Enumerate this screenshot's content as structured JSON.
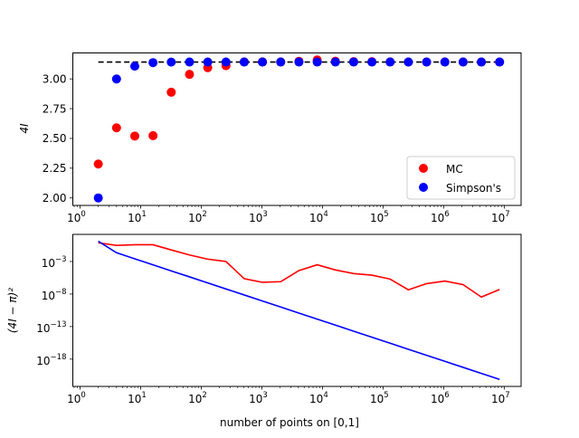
{
  "chart_data": [
    {
      "type": "scatter",
      "xscale": "log",
      "xlim": [
        0.76,
        19000000
      ],
      "ylim": [
        1.937,
        3.218
      ],
      "xlabel": "",
      "ylabel": "4I",
      "xticks": [
        {
          "value": 1,
          "base": "10",
          "exp": "0"
        },
        {
          "value": 10,
          "base": "10",
          "exp": "1"
        },
        {
          "value": 100,
          "base": "10",
          "exp": "2"
        },
        {
          "value": 1000,
          "base": "10",
          "exp": "3"
        },
        {
          "value": 10000,
          "base": "10",
          "exp": "4"
        },
        {
          "value": 100000,
          "base": "10",
          "exp": "5"
        },
        {
          "value": 1000000,
          "base": "10",
          "exp": "6"
        },
        {
          "value": 10000000,
          "base": "10",
          "exp": "7"
        }
      ],
      "yticks": [
        {
          "value": 2.0,
          "label": "2.00"
        },
        {
          "value": 2.25,
          "label": "2.25"
        },
        {
          "value": 2.5,
          "label": "2.50"
        },
        {
          "value": 2.75,
          "label": "2.75"
        },
        {
          "value": 3.0,
          "label": "3.00"
        }
      ],
      "x": [
        2,
        4,
        8,
        16,
        32,
        64,
        128,
        256,
        512,
        1024,
        2048,
        4096,
        8192,
        16384,
        32768,
        65536,
        131072,
        262144,
        524288,
        1048576,
        2097152,
        4194304,
        8388608
      ],
      "reference_line": {
        "name": "pi",
        "value": 3.14159,
        "style": "dashed",
        "color": "#000000",
        "x_range": [
          2,
          8388608
        ]
      },
      "series": [
        {
          "name": "MC",
          "color": "#ff0000",
          "values": [
            2.285,
            2.589,
            2.52,
            2.523,
            2.888,
            3.038,
            3.094,
            3.111,
            3.143,
            3.1426,
            3.1427,
            3.148,
            3.1594,
            3.1487,
            3.1453,
            3.1444,
            3.143,
            3.1418,
            3.1422,
            3.1426,
            3.1421,
            3.1417,
            3.1418
          ]
        },
        {
          "name": "Simpson's",
          "color": "#0000ff",
          "values": [
            2.0,
            2.999,
            3.107,
            3.1366,
            3.1412,
            3.1416,
            3.1416,
            3.1416,
            3.1416,
            3.1416,
            3.1416,
            3.1416,
            3.1416,
            3.1416,
            3.1416,
            3.1416,
            3.1416,
            3.1416,
            3.1416,
            3.1416,
            3.1416,
            3.1416,
            3.1416
          ]
        }
      ],
      "legend": {
        "position": "lower-right",
        "entries": [
          "MC",
          "Simpson's"
        ]
      }
    },
    {
      "type": "line",
      "xscale": "log",
      "yscale": "log",
      "xlim": [
        0.76,
        19000000
      ],
      "ylim_log10": [
        -22.2,
        1.17
      ],
      "xlabel": "number of points on [0,1]",
      "ylabel": "(4I − π)²",
      "xticks": [
        {
          "value": 1,
          "base": "10",
          "exp": "0"
        },
        {
          "value": 10,
          "base": "10",
          "exp": "1"
        },
        {
          "value": 100,
          "base": "10",
          "exp": "2"
        },
        {
          "value": 1000,
          "base": "10",
          "exp": "3"
        },
        {
          "value": 10000,
          "base": "10",
          "exp": "4"
        },
        {
          "value": 100000,
          "base": "10",
          "exp": "5"
        },
        {
          "value": 1000000,
          "base": "10",
          "exp": "6"
        },
        {
          "value": 10000000,
          "base": "10",
          "exp": "7"
        }
      ],
      "yticks": [
        {
          "log10": -3,
          "base": "10",
          "exp": "−3"
        },
        {
          "log10": -8,
          "base": "10",
          "exp": "−8"
        },
        {
          "log10": -13,
          "base": "10",
          "exp": "−13"
        },
        {
          "log10": -18,
          "base": "10",
          "exp": "−18"
        }
      ],
      "x": [
        2,
        4,
        8,
        16,
        32,
        64,
        128,
        256,
        512,
        1024,
        2048,
        4096,
        8192,
        16384,
        32768,
        65536,
        131072,
        262144,
        524288,
        1048576,
        2097152,
        4194304,
        8388608
      ],
      "series": [
        {
          "name": "MC",
          "color": "#ff0000",
          "log10_values": [
            -0.13,
            -0.52,
            -0.42,
            -0.42,
            -1.22,
            -1.99,
            -2.64,
            -3.0,
            -5.64,
            -6.2,
            -6.1,
            -4.39,
            -3.5,
            -4.3,
            -4.85,
            -5.1,
            -5.7,
            -7.35,
            -6.4,
            -6.0,
            -6.55,
            -8.46,
            -7.3
          ]
        },
        {
          "name": "Simpson's",
          "color": "#0000ff",
          "log10_values": [
            0.115,
            -1.65,
            -2.58,
            -3.51,
            -4.44,
            -5.36,
            -6.29,
            -7.22,
            -8.14,
            -9.07,
            -10.0,
            -10.93,
            -11.85,
            -12.78,
            -13.71,
            -14.63,
            -15.56,
            -16.49,
            -17.42,
            -18.34,
            -19.27,
            -20.2,
            -21.12
          ]
        }
      ]
    }
  ]
}
